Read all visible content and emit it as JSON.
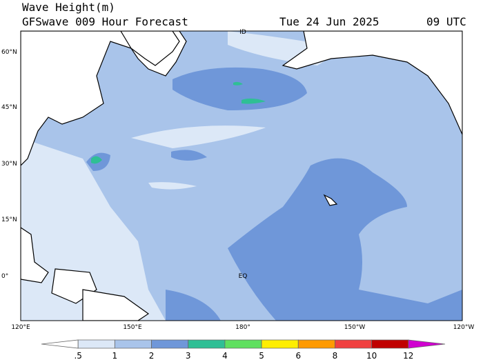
{
  "header": {
    "title": "Wave Height(m)",
    "subtitle": "GFSwave 009 Hour Forecast",
    "date": "Tue 24 Jun 2025",
    "time": "09 UTC"
  },
  "map": {
    "lat_labels": [
      "60°N",
      "45°N",
      "30°N",
      "15°N",
      "0°"
    ],
    "lon_labels": [
      "120°E",
      "150°E",
      "180°",
      "150°W",
      "120°W"
    ],
    "annotations": [
      "ID",
      "EQ"
    ]
  },
  "colorbar": {
    "labels": [
      ".5",
      "1",
      "2",
      "3",
      "4",
      "5",
      "6",
      "8",
      "10",
      "12"
    ],
    "colors": [
      "#ffffff",
      "#dce8f7",
      "#a9c4ea",
      "#6f97d9",
      "#2fbf95",
      "#5fe05f",
      "#ffee00",
      "#ff9a00",
      "#f0403f",
      "#c00000",
      "#d000d0"
    ]
  }
}
